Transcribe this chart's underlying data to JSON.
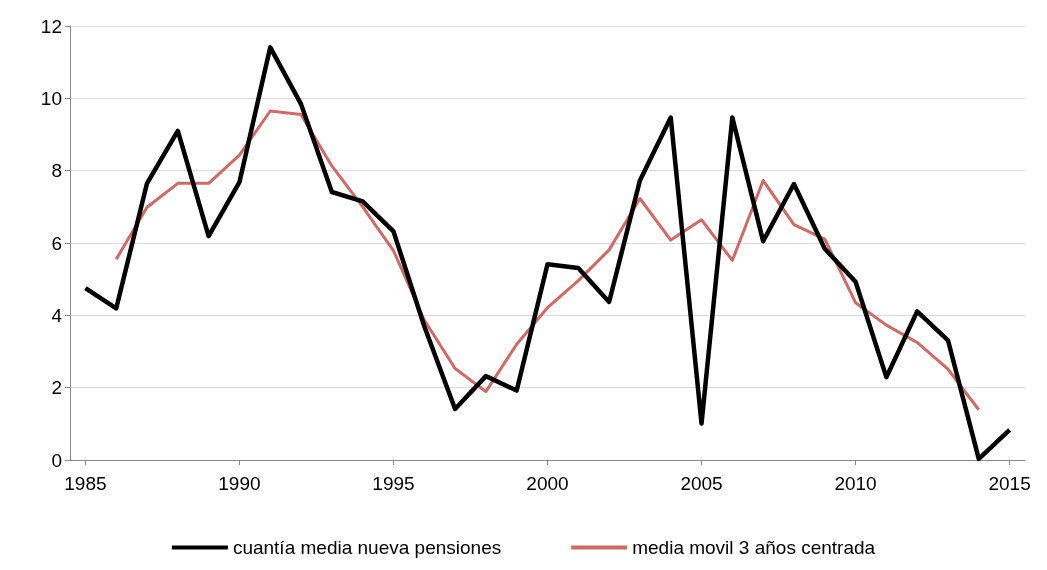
{
  "chart_data": {
    "type": "line",
    "xlim": [
      1984.5,
      2015.5
    ],
    "xticks": [
      1985,
      1990,
      1995,
      2000,
      2005,
      2010,
      2015
    ],
    "ylim": [
      0,
      12
    ],
    "yticks": [
      0,
      2,
      4,
      6,
      8,
      10,
      12
    ],
    "grid": "y",
    "legend": "bottom",
    "marker": "none",
    "line_style": "solid",
    "series": [
      {
        "name": "cuantía media nueva pensiones",
        "color": "#000000",
        "x": [
          1985,
          1986,
          1987,
          1988,
          1989,
          1990,
          1991,
          1992,
          1993,
          1994,
          1995,
          1996,
          1997,
          1998,
          1999,
          2000,
          2001,
          2002,
          2003,
          2004,
          2005,
          2006,
          2007,
          2008,
          2009,
          2010,
          2011,
          2012,
          2013,
          2014,
          2015
        ],
        "values": [
          4.75,
          4.19,
          7.65,
          9.1,
          6.19,
          7.68,
          11.41,
          9.84,
          7.41,
          7.15,
          6.32,
          3.7,
          1.41,
          2.32,
          1.92,
          5.41,
          5.31,
          4.37,
          7.73,
          9.47,
          1.01,
          9.47,
          6.05,
          7.63,
          5.84,
          4.93,
          2.29,
          4.11,
          3.31,
          0.03,
          0.83
        ]
      },
      {
        "name": "media movil 3 años centrada",
        "color": "#d06a67",
        "x": [
          1986,
          1987,
          1988,
          1989,
          1990,
          1991,
          1992,
          1993,
          1994,
          1995,
          1996,
          1997,
          1998,
          1999,
          2000,
          2001,
          2002,
          2003,
          2004,
          2005,
          2006,
          2007,
          2008,
          2009,
          2010,
          2011,
          2012,
          2013,
          2014
        ],
        "values": [
          5.55,
          6.99,
          7.65,
          7.65,
          8.43,
          9.65,
          9.55,
          8.13,
          7.0,
          5.79,
          3.87,
          2.53,
          1.89,
          3.2,
          4.21,
          4.96,
          5.81,
          7.23,
          6.08,
          6.64,
          5.52,
          7.73,
          6.51,
          6.11,
          4.35,
          3.73,
          3.25,
          2.51,
          1.39
        ]
      }
    ]
  }
}
